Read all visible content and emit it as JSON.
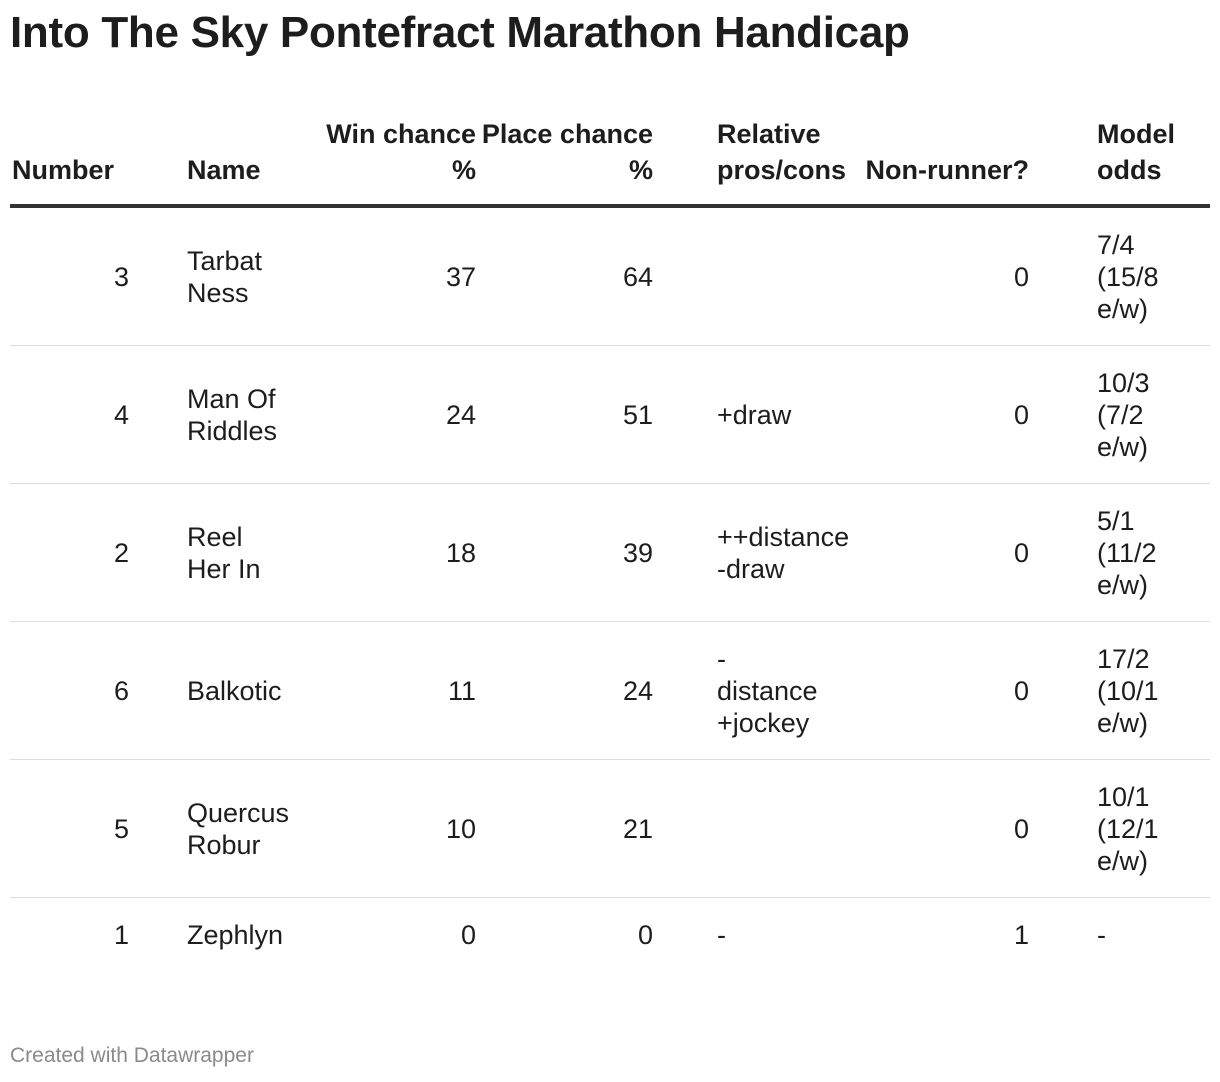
{
  "title": "Into The Sky Pontefract Marathon Handicap",
  "footer": "Created with Datawrapper",
  "chart_data": {
    "type": "table",
    "columns": [
      "Number",
      "Name",
      "Win chance %",
      "Place chance %",
      "Relative pros/cons",
      "Non-runner?",
      "Model odds"
    ],
    "rows": [
      {
        "number": 3,
        "name": "Tarbat Ness",
        "win": 37,
        "place": 64,
        "pros_cons": "",
        "non_runner": 0,
        "odds": "7/4 (15/8 e/w)"
      },
      {
        "number": 4,
        "name": "Man Of Riddles",
        "win": 24,
        "place": 51,
        "pros_cons": "+draw",
        "non_runner": 0,
        "odds": "10/3 (7/2 e/w)"
      },
      {
        "number": 2,
        "name": "Reel Her In",
        "win": 18,
        "place": 39,
        "pros_cons": "++distance -draw",
        "non_runner": 0,
        "odds": "5/1 (11/2 e/w)"
      },
      {
        "number": 6,
        "name": "Balkotic",
        "win": 11,
        "place": 24,
        "pros_cons": "-distance +jockey",
        "non_runner": 0,
        "odds": "17/2 (10/1 e/w)"
      },
      {
        "number": 5,
        "name": "Quercus Robur",
        "win": 10,
        "place": 21,
        "pros_cons": "",
        "non_runner": 0,
        "odds": "10/1 (12/1 e/w)"
      },
      {
        "number": 1,
        "name": "Zephlyn",
        "win": 0,
        "place": 0,
        "pros_cons": "-",
        "non_runner": 1,
        "odds": "-"
      }
    ]
  }
}
